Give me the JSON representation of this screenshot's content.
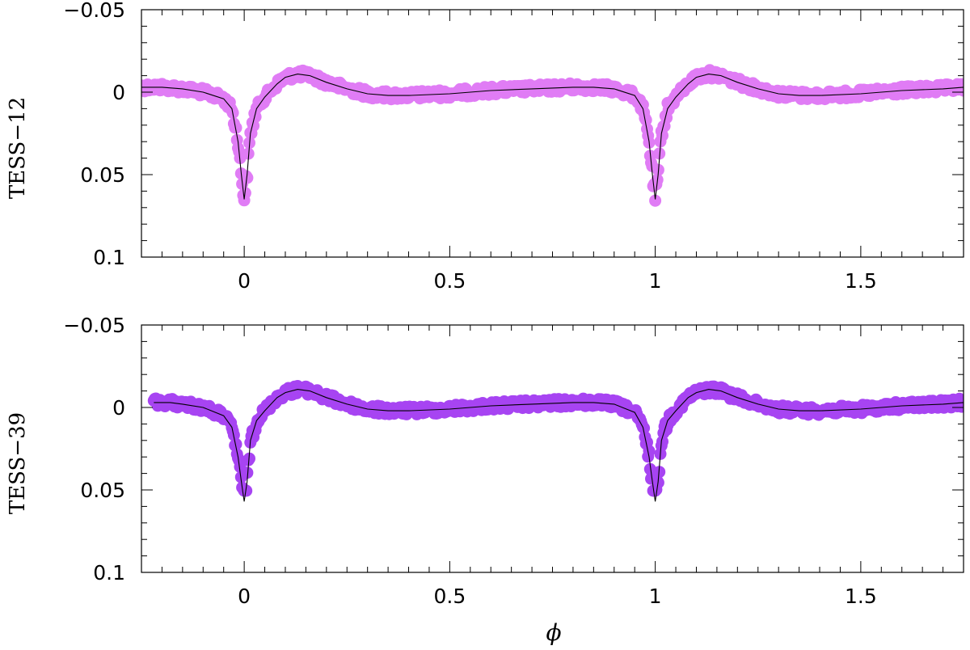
{
  "chart_data": [
    {
      "type": "scatter",
      "ylabel": "TESS−12",
      "xlabel": "",
      "xlim": [
        -0.25,
        1.75
      ],
      "ylim": [
        0.1,
        -0.05
      ],
      "y_inverted": true,
      "x_ticks": [
        0,
        0.5,
        1,
        1.5
      ],
      "x_tick_labels": [
        "0",
        "0.5",
        "1",
        "1.5"
      ],
      "y_ticks": [
        -0.05,
        0,
        0.05,
        0.1
      ],
      "y_tick_labels": [
        "−0.05",
        "0",
        "0.05",
        "0.1"
      ],
      "point_color": "#e07cf5",
      "model_color": "#000000",
      "series": [
        {
          "kind": "model",
          "x": [
            -0.25,
            -0.2,
            -0.15,
            -0.1,
            -0.05,
            -0.03,
            -0.015,
            -0.007,
            0,
            0.007,
            0.015,
            0.03,
            0.05,
            0.08,
            0.1,
            0.13,
            0.16,
            0.2,
            0.25,
            0.3,
            0.35,
            0.4,
            0.5,
            0.6,
            0.7,
            0.8,
            0.85,
            0.9,
            0.95,
            0.97,
            0.985,
            0.993,
            1,
            1.007,
            1.015,
            1.03,
            1.05,
            1.08,
            1.1,
            1.13,
            1.16,
            1.2,
            1.25,
            1.3,
            1.35,
            1.4,
            1.5,
            1.6,
            1.7,
            1.75
          ],
          "y": [
            -0.003,
            -0.003,
            -0.002,
            0.0,
            0.004,
            0.01,
            0.03,
            0.05,
            0.065,
            0.05,
            0.025,
            0.01,
            0.003,
            -0.005,
            -0.009,
            -0.011,
            -0.01,
            -0.006,
            -0.002,
            0.001,
            0.002,
            0.002,
            0.001,
            -0.001,
            -0.002,
            -0.003,
            -0.003,
            -0.002,
            0.002,
            0.01,
            0.03,
            0.05,
            0.065,
            0.05,
            0.025,
            0.01,
            0.003,
            -0.005,
            -0.009,
            -0.011,
            -0.01,
            -0.006,
            -0.002,
            0.001,
            0.002,
            0.002,
            0.001,
            -0.001,
            -0.002,
            -0.003
          ]
        }
      ]
    },
    {
      "type": "scatter",
      "ylabel": "TESS−39",
      "xlabel": "ϕ",
      "xlim": [
        -0.25,
        1.75
      ],
      "ylim": [
        0.1,
        -0.05
      ],
      "y_inverted": true,
      "x_ticks": [
        0,
        0.5,
        1,
        1.5
      ],
      "x_tick_labels": [
        "0",
        "0.5",
        "1",
        "1.5"
      ],
      "y_ticks": [
        -0.05,
        0,
        0.05,
        0.1
      ],
      "y_tick_labels": [
        "−0.05",
        "0",
        "0.05",
        "0.1"
      ],
      "point_color": "#a744f2",
      "model_color": "#000000",
      "series": [
        {
          "kind": "model",
          "x": [
            -0.22,
            -0.18,
            -0.15,
            -0.1,
            -0.05,
            -0.03,
            -0.015,
            -0.007,
            0,
            0.007,
            0.015,
            0.03,
            0.05,
            0.08,
            0.1,
            0.13,
            0.16,
            0.2,
            0.25,
            0.3,
            0.35,
            0.4,
            0.5,
            0.6,
            0.7,
            0.8,
            0.85,
            0.9,
            0.95,
            0.97,
            0.985,
            0.993,
            1,
            1.007,
            1.015,
            1.03,
            1.05,
            1.08,
            1.1,
            1.13,
            1.16,
            1.2,
            1.25,
            1.3,
            1.35,
            1.4,
            1.5,
            1.6,
            1.7,
            1.75
          ],
          "y": [
            -0.003,
            -0.003,
            -0.002,
            0.0,
            0.005,
            0.012,
            0.03,
            0.045,
            0.057,
            0.045,
            0.02,
            0.008,
            0.002,
            -0.006,
            -0.009,
            -0.011,
            -0.01,
            -0.006,
            -0.002,
            0.001,
            0.002,
            0.002,
            0.001,
            -0.001,
            -0.002,
            -0.003,
            -0.003,
            -0.002,
            0.003,
            0.012,
            0.03,
            0.045,
            0.057,
            0.045,
            0.02,
            0.008,
            0.002,
            -0.006,
            -0.009,
            -0.011,
            -0.01,
            -0.006,
            -0.002,
            0.001,
            0.002,
            0.002,
            0.001,
            -0.001,
            -0.002,
            -0.003
          ]
        }
      ]
    }
  ]
}
